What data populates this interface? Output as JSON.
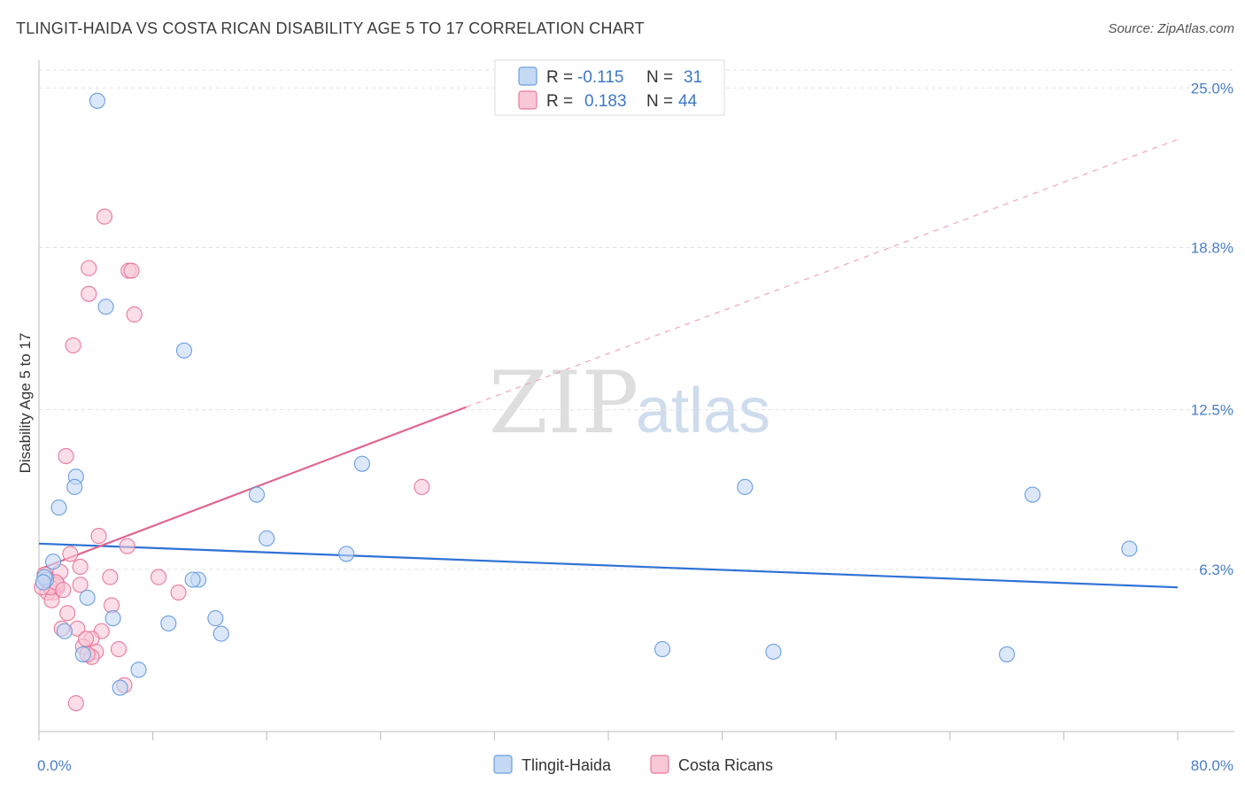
{
  "title": "TLINGIT-HAIDA VS COSTA RICAN DISABILITY AGE 5 TO 17 CORRELATION CHART",
  "source": "Source: ZipAtlas.com",
  "watermark": {
    "part1": "ZIP",
    "part2": "atlas"
  },
  "chart_data": {
    "type": "scatter",
    "ylabel": "Disability Age 5 to 17",
    "xlim": [
      0,
      80
    ],
    "ylim": [
      0,
      25.8
    ],
    "x_tick_labels": [
      {
        "value": 0,
        "label": "0.0%"
      },
      {
        "value": 80,
        "label": "80.0%"
      }
    ],
    "y_ticks": [
      {
        "value": 6.3,
        "label": "6.3%"
      },
      {
        "value": 12.5,
        "label": "12.5%"
      },
      {
        "value": 18.8,
        "label": "18.8%"
      },
      {
        "value": 25.0,
        "label": "25.0%"
      }
    ],
    "legend": [
      {
        "r_label": "R =",
        "r": "-0.115",
        "n_label": "N =",
        "n": "31"
      },
      {
        "r_label": "R =",
        "r": "0.183",
        "n_label": "N =",
        "n": "44"
      }
    ],
    "series": [
      {
        "name": "Tlingit-Haida",
        "color": "#6a9ee0",
        "fill": "#c5d9f5",
        "trend": {
          "x1": 0,
          "y1": 7.3,
          "x2": 80,
          "y2": 5.6,
          "dashed_to": null
        },
        "points": [
          [
            4.1,
            24.5
          ],
          [
            4.7,
            16.5
          ],
          [
            10.2,
            14.8
          ],
          [
            2.6,
            9.9
          ],
          [
            2.5,
            9.5
          ],
          [
            1.4,
            8.7
          ],
          [
            15.3,
            9.2
          ],
          [
            22.7,
            10.4
          ],
          [
            16.0,
            7.5
          ],
          [
            21.6,
            6.9
          ],
          [
            49.6,
            9.5
          ],
          [
            69.8,
            9.2
          ],
          [
            76.6,
            7.1
          ],
          [
            1.0,
            6.6
          ],
          [
            0.5,
            5.9
          ],
          [
            0.4,
            6.0
          ],
          [
            11.2,
            5.9
          ],
          [
            10.8,
            5.9
          ],
          [
            3.4,
            5.2
          ],
          [
            1.8,
            3.9
          ],
          [
            5.2,
            4.4
          ],
          [
            9.1,
            4.2
          ],
          [
            12.4,
            4.4
          ],
          [
            12.8,
            3.8
          ],
          [
            3.1,
            3.0
          ],
          [
            51.6,
            3.1
          ],
          [
            43.8,
            3.2
          ],
          [
            68.0,
            3.0
          ],
          [
            7.0,
            2.4
          ],
          [
            5.7,
            1.7
          ],
          [
            0.3,
            5.8
          ]
        ]
      },
      {
        "name": "Costa Ricans",
        "color": "#e8799a",
        "fill": "#f8c8d7",
        "trend": {
          "x1": 0,
          "y1": 6.3,
          "x2": 30,
          "y2": 12.6,
          "dashed_to": {
            "x": 80,
            "y": 23.0
          }
        },
        "points": [
          [
            4.6,
            20.0
          ],
          [
            3.5,
            18.0
          ],
          [
            6.3,
            17.9
          ],
          [
            6.5,
            17.9
          ],
          [
            3.5,
            17.0
          ],
          [
            6.7,
            16.2
          ],
          [
            2.4,
            15.0
          ],
          [
            1.9,
            10.7
          ],
          [
            26.9,
            9.5
          ],
          [
            4.2,
            7.6
          ],
          [
            6.2,
            7.2
          ],
          [
            2.2,
            6.9
          ],
          [
            2.9,
            6.4
          ],
          [
            1.5,
            6.2
          ],
          [
            5.0,
            6.0
          ],
          [
            8.4,
            6.0
          ],
          [
            0.5,
            5.9
          ],
          [
            0.8,
            5.6
          ],
          [
            1.3,
            5.6
          ],
          [
            1.0,
            5.4
          ],
          [
            0.6,
            5.4
          ],
          [
            2.9,
            5.7
          ],
          [
            1.3,
            5.7
          ],
          [
            0.4,
            6.1
          ],
          [
            9.8,
            5.4
          ],
          [
            0.9,
            5.1
          ],
          [
            5.1,
            4.9
          ],
          [
            2.0,
            4.6
          ],
          [
            1.6,
            4.0
          ],
          [
            2.7,
            4.0
          ],
          [
            4.4,
            3.9
          ],
          [
            3.7,
            3.6
          ],
          [
            5.6,
            3.2
          ],
          [
            3.1,
            3.3
          ],
          [
            3.3,
            3.6
          ],
          [
            4.0,
            3.1
          ],
          [
            3.7,
            2.9
          ],
          [
            3.4,
            3.0
          ],
          [
            0.8,
            5.6
          ],
          [
            1.2,
            5.8
          ],
          [
            6.0,
            1.8
          ],
          [
            2.6,
            1.1
          ],
          [
            1.7,
            5.5
          ],
          [
            0.2,
            5.6
          ]
        ]
      }
    ]
  }
}
